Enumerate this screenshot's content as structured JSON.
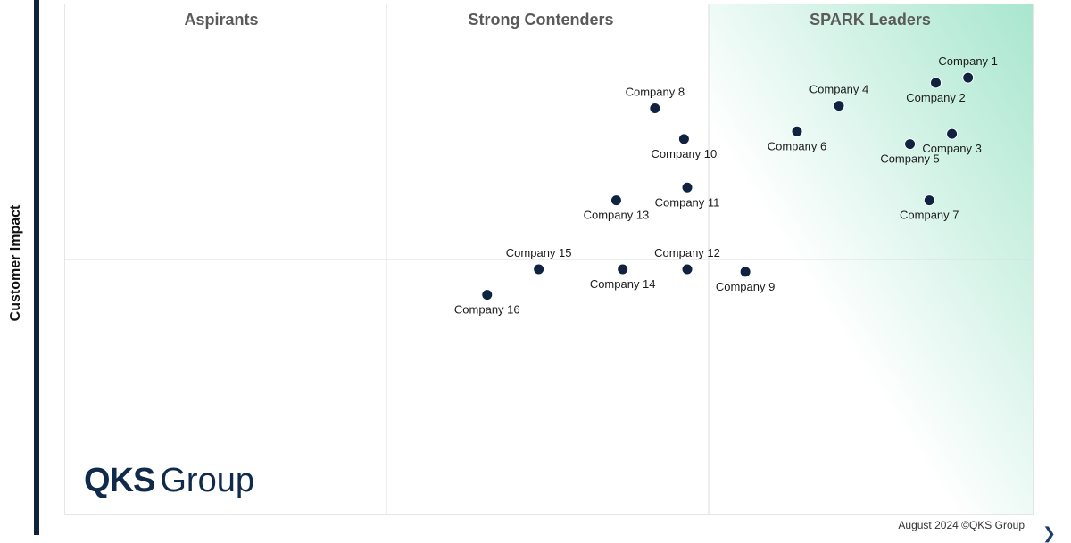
{
  "chart_data": {
    "type": "scatter",
    "ylabel": "Customer Impact",
    "quadrants": [
      "Aspirants",
      "Strong Contenders",
      "SPARK Leaders"
    ],
    "xlim": [
      0,
      3
    ],
    "ylim": [
      0,
      2
    ],
    "points": [
      {
        "label": "Company 1",
        "x": 2.8,
        "y": 1.71,
        "label_pos": "above"
      },
      {
        "label": "Company 2",
        "x": 2.7,
        "y": 1.69,
        "label_pos": "below"
      },
      {
        "label": "Company 3",
        "x": 2.75,
        "y": 1.49,
        "label_pos": "below"
      },
      {
        "label": "Company 4",
        "x": 2.4,
        "y": 1.6,
        "label_pos": "above"
      },
      {
        "label": "Company 5",
        "x": 2.62,
        "y": 1.45,
        "label_pos": "below"
      },
      {
        "label": "Company 6",
        "x": 2.27,
        "y": 1.5,
        "label_pos": "below"
      },
      {
        "label": "Company 7",
        "x": 2.68,
        "y": 1.23,
        "label_pos": "below"
      },
      {
        "label": "Company 8",
        "x": 1.83,
        "y": 1.59,
        "label_pos": "above"
      },
      {
        "label": "Company 9",
        "x": 2.11,
        "y": 0.95,
        "label_pos": "below"
      },
      {
        "label": "Company 10",
        "x": 1.92,
        "y": 1.47,
        "label_pos": "below"
      },
      {
        "label": "Company 11",
        "x": 1.93,
        "y": 1.28,
        "label_pos": "below"
      },
      {
        "label": "Company 12",
        "x": 1.93,
        "y": 0.96,
        "label_pos": "above"
      },
      {
        "label": "Company 13",
        "x": 1.71,
        "y": 1.23,
        "label_pos": "below"
      },
      {
        "label": "Company 14",
        "x": 1.73,
        "y": 0.96,
        "label_pos": "below"
      },
      {
        "label": "Company 15",
        "x": 1.47,
        "y": 0.96,
        "label_pos": "above"
      },
      {
        "label": "Company 16",
        "x": 1.31,
        "y": 0.86,
        "label_pos": "below"
      }
    ],
    "colors": {
      "point": "#0f2240",
      "leader_gradient": "#a8e6cf",
      "divider": "#dddddd"
    }
  },
  "logo": {
    "bold": "QKS",
    "light": "Group"
  },
  "footer": "August 2024 ©QKS Group",
  "arrow_glyph": "❯"
}
